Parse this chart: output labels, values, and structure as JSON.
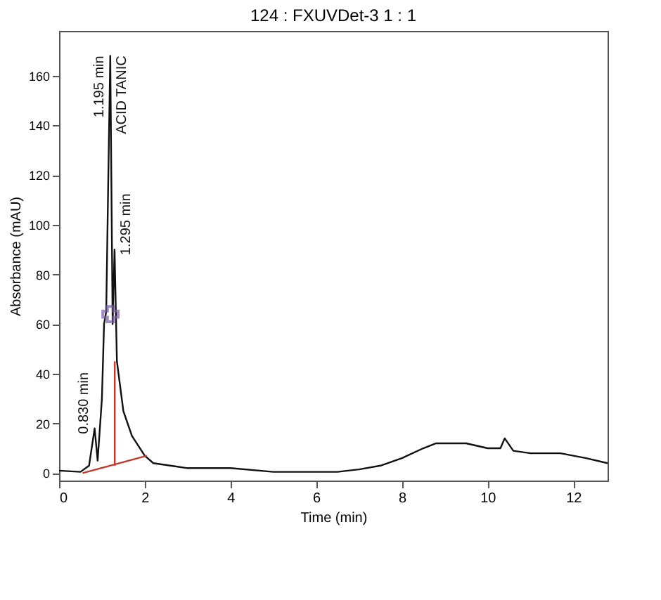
{
  "chart_data": {
    "type": "line",
    "title": "124 : FXUVDet-3 1 : 1",
    "xlabel": "Time (min)",
    "ylabel": "Absorbance (mAU)",
    "xlim": [
      0,
      12.8
    ],
    "ylim": [
      -3,
      178
    ],
    "xticks": [
      0,
      2,
      4,
      6,
      8,
      10,
      12
    ],
    "yticks": [
      0,
      20,
      40,
      60,
      80,
      100,
      120,
      140,
      160
    ],
    "grid": false,
    "series": [
      {
        "color": "#111111",
        "x": [
          0,
          0.5,
          0.7,
          0.83,
          0.9,
          1.0,
          1.05,
          1.1,
          1.15,
          1.195,
          1.25,
          1.295,
          1.35,
          1.5,
          1.7,
          2.0,
          2.2,
          3,
          4,
          5,
          6.5,
          7,
          7.5,
          8,
          8.5,
          8.8,
          9.5,
          10,
          10.3,
          10.4,
          10.6,
          11,
          11.7,
          12.3,
          12.8
        ],
        "values": [
          1,
          0.5,
          3,
          18,
          5,
          30,
          60,
          65,
          120,
          168,
          60,
          90,
          45,
          25,
          15,
          7,
          4,
          2,
          2,
          0.5,
          0.5,
          1.5,
          3,
          6,
          10,
          12,
          12,
          10,
          10,
          14,
          9,
          8,
          8,
          6,
          4
        ]
      },
      {
        "color": "#c0392b",
        "x": [
          0.55,
          2.05
        ],
        "values": [
          0,
          7
        ]
      },
      {
        "color": "#c0392b",
        "x": [
          1.3,
          1.3
        ],
        "values": [
          3,
          45
        ]
      },
      {
        "type": "scatter",
        "marker": "cross",
        "color": "#7b5ea7",
        "x": [
          1.2
        ],
        "values": [
          64
        ]
      }
    ],
    "annotations": [
      {
        "text": "0.830 min",
        "x": 0.83,
        "y": 18
      },
      {
        "text": "1.195 min",
        "x": 1.195,
        "y": 168
      },
      {
        "text": "ACID TANIC",
        "x": 1.195,
        "y": 168
      },
      {
        "text": "1.295 min",
        "x": 1.295,
        "y": 90
      }
    ]
  }
}
